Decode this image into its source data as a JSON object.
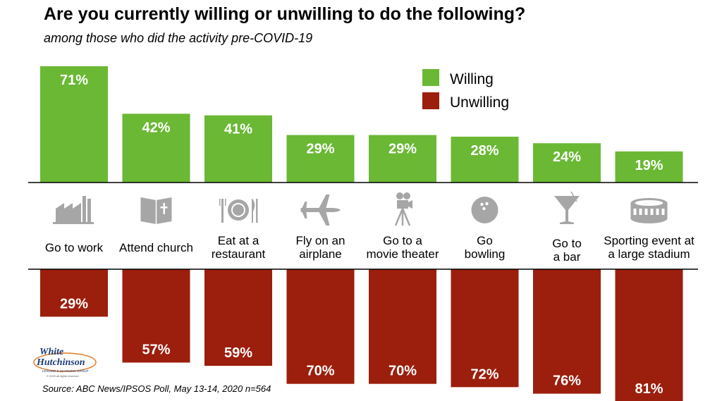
{
  "title": "Are you currently willing or unwilling to do the following?",
  "subtitle": "among those who did the activity pre-COVID-19",
  "source": "Source: ABC News/IPSOS Poll, May 13-14, 2020 n=564",
  "logo": {
    "line1": "White",
    "line2": "Hutchinson",
    "line3": "LEISURE & LEARNING GROUP",
    "line4": "© 2020 all rights reserved"
  },
  "colors": {
    "willing": "#6ab834",
    "unwilling": "#9c1e0c",
    "icons": "#a6a6a6"
  },
  "chart_data": {
    "type": "bar",
    "title": "Are you currently willing or unwilling to do the following?",
    "subtitle": "among those who did the activity pre-COVID-19",
    "categories": [
      [
        "Go to work"
      ],
      [
        "Attend church"
      ],
      [
        "Eat at a",
        "restaurant"
      ],
      [
        "Fly on an",
        "airplane"
      ],
      [
        "Go to a",
        "movie theater"
      ],
      [
        "Go",
        "bowling"
      ],
      [
        "Go to",
        "a bar"
      ],
      [
        "Sporting event at",
        "a large stadium"
      ]
    ],
    "icons": [
      "factory-icon",
      "bible-icon",
      "place-setting-icon",
      "airplane-icon",
      "movie-camera-icon",
      "bowling-ball-icon",
      "cocktail-glass-icon",
      "stadium-icon"
    ],
    "series": [
      {
        "name": "Willing",
        "values": [
          71,
          42,
          41,
          29,
          29,
          28,
          24,
          19
        ],
        "labels": [
          "71%",
          "42%",
          "41%",
          "29%",
          "29%",
          "28%",
          "24%",
          "19%"
        ]
      },
      {
        "name": "Unwilling",
        "values": [
          29,
          57,
          59,
          70,
          70,
          72,
          76,
          81
        ],
        "labels": [
          "29%",
          "57%",
          "59%",
          "70%",
          "70%",
          "72%",
          "76%",
          "81%"
        ]
      }
    ],
    "ylim": [
      0,
      100
    ],
    "legend": "top-right",
    "grid": false
  }
}
